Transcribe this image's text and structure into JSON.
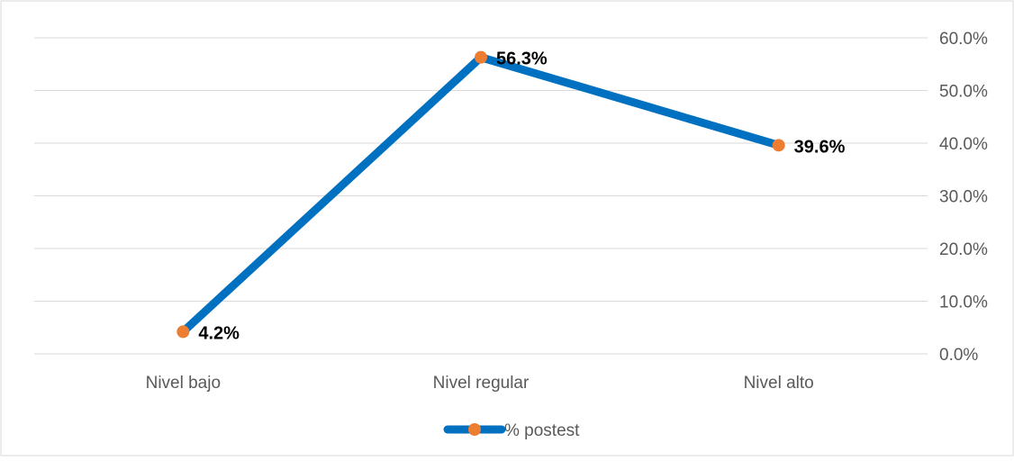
{
  "chart_data": {
    "type": "line",
    "title": "",
    "xlabel": "",
    "ylabel": "",
    "categories": [
      "Nivel bajo",
      "Nivel regular",
      "Nivel alto"
    ],
    "series": [
      {
        "name": "% postest",
        "values": [
          4.2,
          56.3,
          39.6
        ],
        "labels": [
          "4.2%",
          "56.3%",
          "39.6%"
        ],
        "line_color": "#0070c0",
        "marker_color": "#ed7d31"
      }
    ],
    "ylim": [
      0,
      60
    ],
    "yticks": [
      "0.0%",
      "10.0%",
      "20.0%",
      "30.0%",
      "40.0%",
      "50.0%",
      "60.0%"
    ],
    "y_axis_side": "right",
    "grid": true,
    "legend_position": "bottom"
  },
  "colors": {
    "grid": "#d9d9d9",
    "axis_text": "#595959",
    "data_label": "#000000",
    "border": "#d9d9d9"
  }
}
